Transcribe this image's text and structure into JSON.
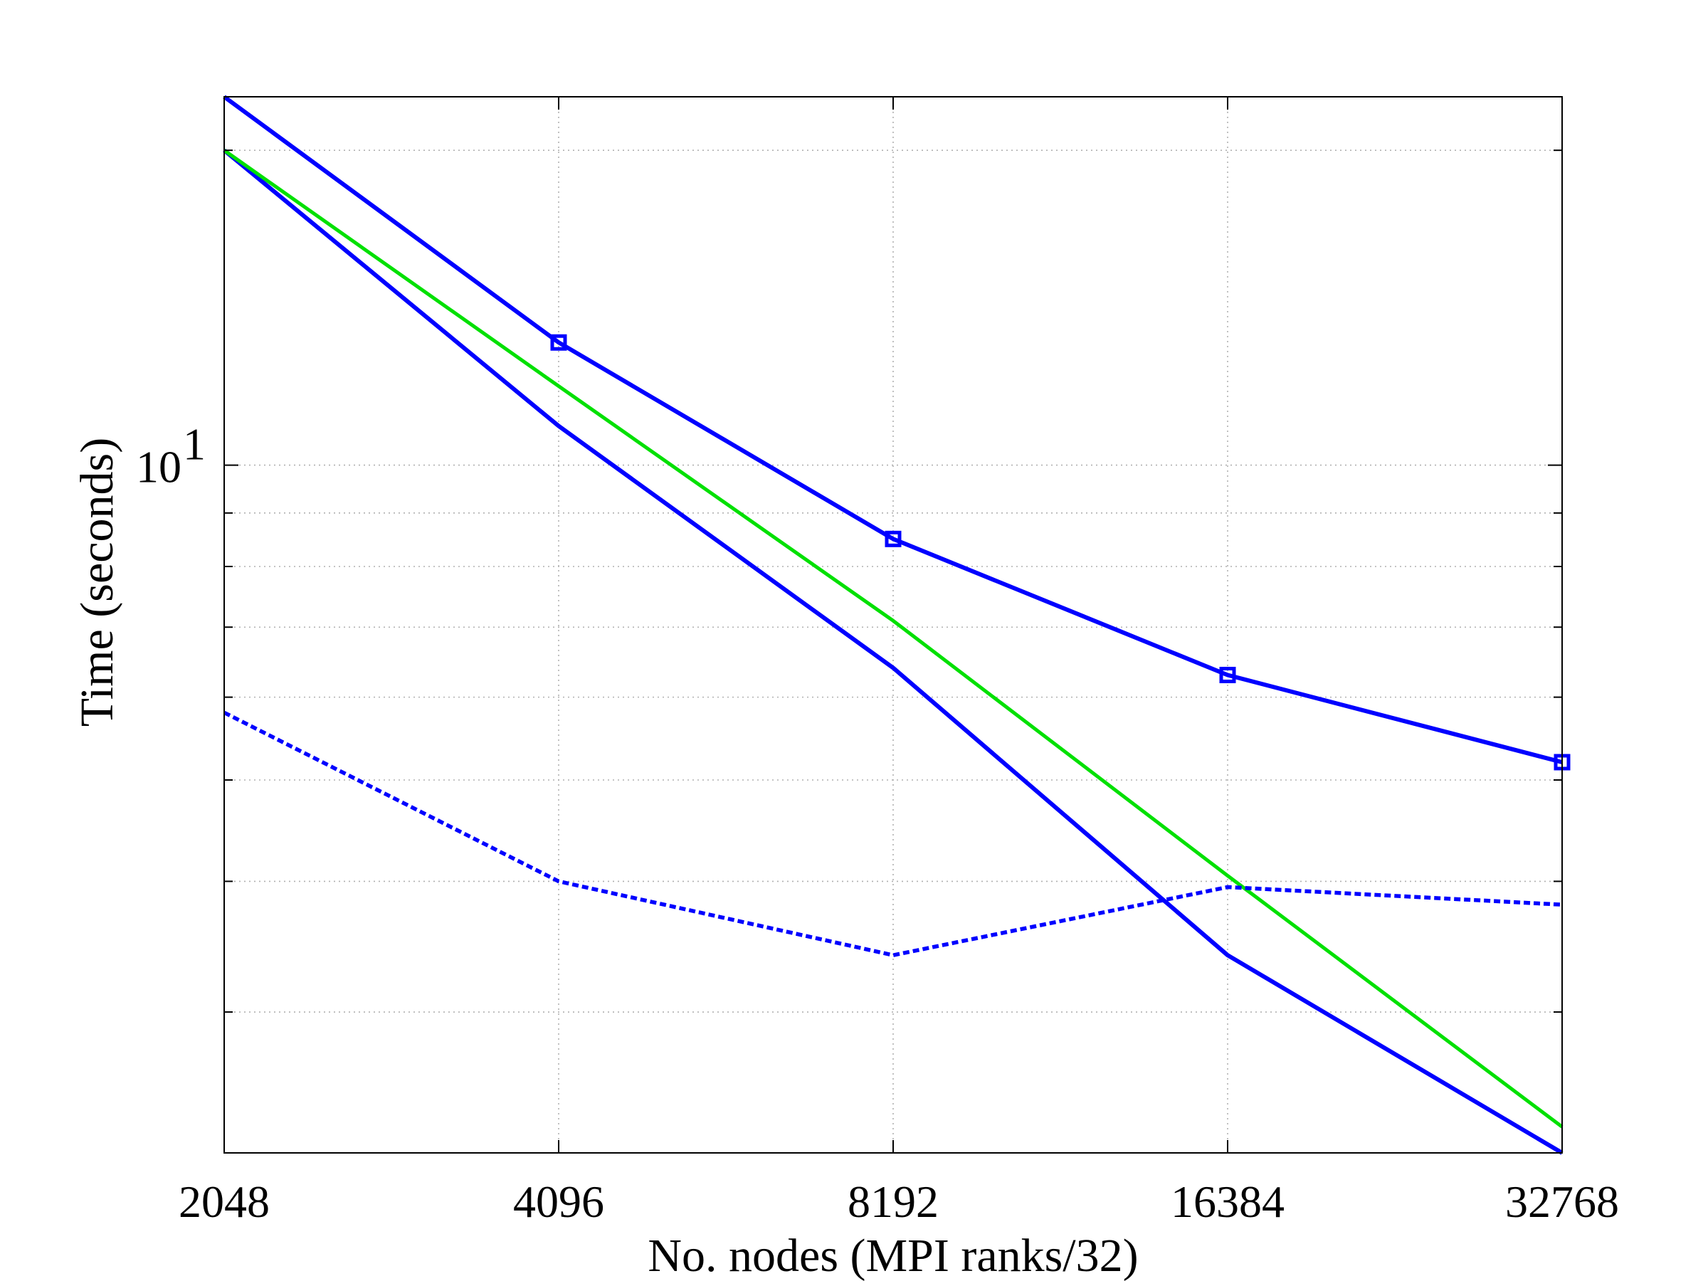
{
  "chart_data": {
    "type": "line",
    "title": "",
    "xlabel": "No. nodes (MPI ranks/32)",
    "ylabel": "Time (seconds)",
    "xscale": "log2",
    "yscale": "log10",
    "xlim": [
      2048,
      32768
    ],
    "ylim": [
      2.2,
      22.5
    ],
    "x": [
      2048,
      4096,
      8192,
      16384,
      32768
    ],
    "xticks": [
      "2048",
      "4096",
      "8192",
      "16384",
      "32768"
    ],
    "yticks": [
      {
        "value": 10,
        "base": "10",
        "exp": "1"
      }
    ],
    "yminor": [
      3,
      4,
      5,
      6,
      7,
      8,
      9,
      20
    ],
    "grid": true,
    "legend": "none",
    "series": [
      {
        "values": [
          22.5,
          13.1,
          8.5,
          6.3,
          5.2
        ],
        "color": "#0000ff",
        "style": "solid",
        "marker": "square"
      },
      {
        "values": [
          20.0,
          10.9,
          6.4,
          3.4,
          2.2
        ],
        "color": "#0000ff",
        "style": "solid",
        "marker": "none"
      },
      {
        "values": [
          20.0,
          11.9,
          7.1,
          4.05,
          2.33
        ],
        "color": "#00e000",
        "style": "solid",
        "marker": "none"
      },
      {
        "values": [
          5.8,
          4.0,
          3.4,
          3.95,
          3.8
        ],
        "color": "#0000ff",
        "style": "dashed",
        "marker": "none"
      }
    ]
  }
}
